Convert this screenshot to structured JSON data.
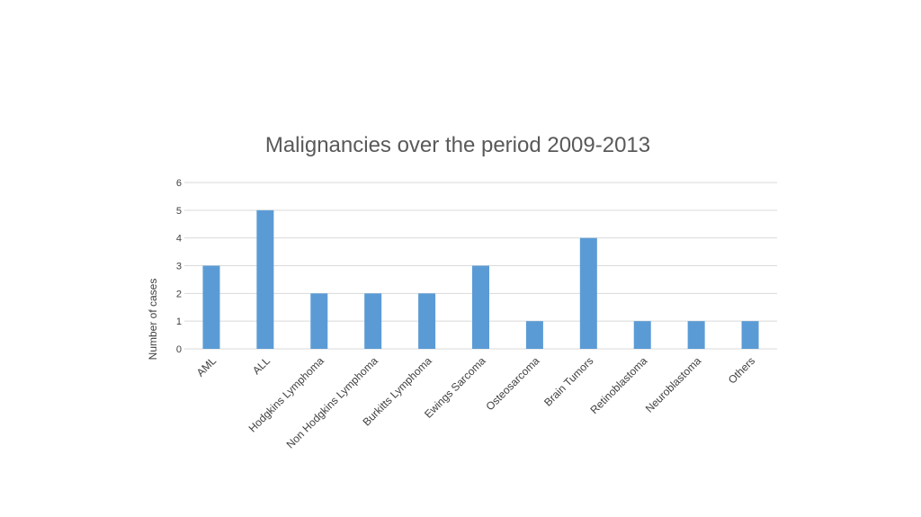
{
  "chart_data": {
    "type": "bar",
    "title": "Malignancies over the period 2009-2013",
    "xlabel": "",
    "ylabel": "Number of cases",
    "categories": [
      "AML",
      "ALL",
      "Hodgkins Lymphoma",
      "Non Hodgkins Lymphoma",
      "Burkitts Lymphoma",
      "Ewings Sarcoma",
      "Osteosarcoma",
      "Brain Tumors",
      "Retinoblastoma",
      "Neuroblastoma",
      "Others"
    ],
    "values": [
      3,
      5,
      2,
      2,
      2,
      3,
      1,
      4,
      1,
      1,
      1
    ],
    "ylim": [
      0,
      6
    ],
    "yticks": [
      "0",
      "1",
      "2",
      "3",
      "4",
      "5",
      "6"
    ],
    "grid": true,
    "legend": "none",
    "bar_color": "#5b9bd5"
  }
}
